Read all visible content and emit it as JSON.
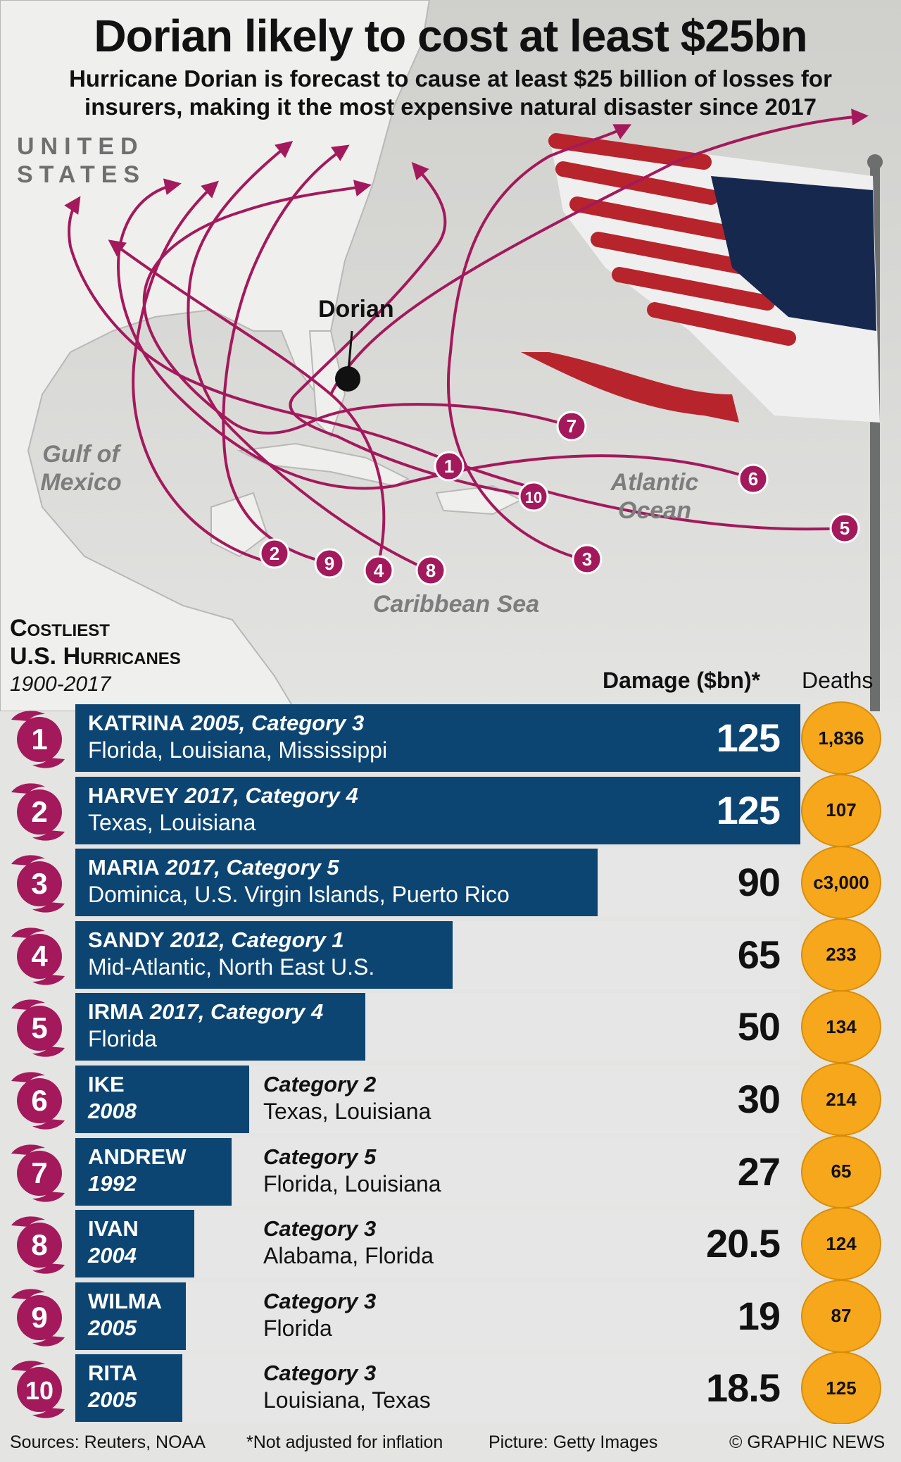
{
  "header": {
    "title": "Dorian likely to cost at least $25bn",
    "subtitle_line1": "Hurricane Dorian is forecast to cause at least $25 billion of losses for",
    "subtitle_line2": "insurers, making it the most expensive natural disaster since 2017"
  },
  "map": {
    "country_line1": "UNITED",
    "country_line2": "STATES",
    "gulf_line1": "Gulf of",
    "gulf_line2": "Mexico",
    "atlantic_line1": "Atlantic",
    "atlantic_line2": "Ocean",
    "caribbean": "Caribbean Sea",
    "dorian_label": "Dorian",
    "track_labels": [
      "1",
      "2",
      "3",
      "4",
      "5",
      "6",
      "7",
      "8",
      "9",
      "10"
    ]
  },
  "section": {
    "title_line1": "Costliest",
    "title_line2": "U.S. Hurricanes",
    "years": "1900-2017",
    "damage_header": "Damage ($bn)*",
    "deaths_header": "Deaths"
  },
  "colors": {
    "bar": "#0c4572",
    "track_magenta": "#a3195b",
    "deaths_circle": "#f6a71b",
    "background": "#e4e4e2"
  },
  "chart_data": {
    "type": "bar",
    "xlabel": "Damage ($bn)*",
    "xlim": [
      0,
      125
    ],
    "rows": [
      {
        "rank": "1",
        "name": "Katrina",
        "year": "2005",
        "category": "Category 3",
        "areas": "Florida, Louisiana, Mississippi",
        "damage": 125,
        "damage_label": "125",
        "deaths": "1,836"
      },
      {
        "rank": "2",
        "name": "Harvey",
        "year": "2017",
        "category": "Category 4",
        "areas": "Texas, Louisiana",
        "damage": 125,
        "damage_label": "125",
        "deaths": "107"
      },
      {
        "rank": "3",
        "name": "Maria",
        "year": "2017",
        "category": "Category 5",
        "areas": "Dominica, U.S. Virgin Islands, Puerto Rico",
        "damage": 90,
        "damage_label": "90",
        "deaths": "c3,000"
      },
      {
        "rank": "4",
        "name": "Sandy",
        "year": "2012",
        "category": "Category 1",
        "areas": "Mid-Atlantic, North East U.S.",
        "damage": 65,
        "damage_label": "65",
        "deaths": "233"
      },
      {
        "rank": "5",
        "name": "Irma",
        "year": "2017",
        "category": "Category 4",
        "areas": "Florida",
        "damage": 50,
        "damage_label": "50",
        "deaths": "134"
      },
      {
        "rank": "6",
        "name": "Ike",
        "year": "2008",
        "category": "Category 2",
        "areas": "Texas, Louisiana",
        "damage": 30,
        "damage_label": "30",
        "deaths": "214"
      },
      {
        "rank": "7",
        "name": "Andrew",
        "year": "1992",
        "category": "Category 5",
        "areas": "Florida, Louisiana",
        "damage": 27,
        "damage_label": "27",
        "deaths": "65"
      },
      {
        "rank": "8",
        "name": "Ivan",
        "year": "2004",
        "category": "Category 3",
        "areas": "Alabama, Florida",
        "damage": 20.5,
        "damage_label": "20.5",
        "deaths": "124"
      },
      {
        "rank": "9",
        "name": "Wilma",
        "year": "2005",
        "category": "Category 3",
        "areas": "Florida",
        "damage": 19,
        "damage_label": "19",
        "deaths": "87"
      },
      {
        "rank": "10",
        "name": "Rita",
        "year": "2005",
        "category": "Category 3",
        "areas": "Louisiana, Texas",
        "damage": 18.5,
        "damage_label": "18.5",
        "deaths": "125"
      }
    ]
  },
  "footer": {
    "sources": "Sources: Reuters, NOAA",
    "note": "*Not adjusted for inflation",
    "picture": "Picture: Getty Images",
    "credit": "© GRAPHIC NEWS"
  }
}
